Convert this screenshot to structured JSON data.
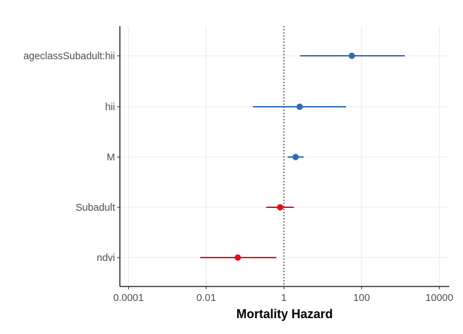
{
  "chart_data": {
    "type": "scatter",
    "subtype": "forest-plot",
    "title": "",
    "xlabel": "Mortality Hazard",
    "ylabel": "",
    "x_scale": "log10",
    "xlim": [
      6e-05,
      18000
    ],
    "x_ticks": [
      {
        "value": 0.0001,
        "label": "0.0001"
      },
      {
        "value": 0.01,
        "label": "0.01"
      },
      {
        "value": 1,
        "label": "1"
      },
      {
        "value": 100,
        "label": "100"
      },
      {
        "value": 10000,
        "label": "10000"
      }
    ],
    "reference_line": {
      "x": 1,
      "style": "dotted"
    },
    "grid": true,
    "legend": "none",
    "colors": {
      "increase": "#2F6DB0",
      "decrease": "#E0101C",
      "axis": "#000000",
      "grid": "#EBEBEB",
      "text": "#4D4D4D"
    },
    "categories": [
      "ageclassSubadult:hii",
      "hii",
      "M",
      "Subadult",
      "ndvi"
    ],
    "points": [
      {
        "label": "ageclassSubadult:hii",
        "estimate": 56,
        "lower": 2.6,
        "upper": 1300,
        "color": "#2F6DB0"
      },
      {
        "label": "hii",
        "estimate": 2.55,
        "lower": 0.16,
        "upper": 40,
        "color": "#2F6DB0"
      },
      {
        "label": "M",
        "estimate": 2.0,
        "lower": 1.25,
        "upper": 3.2,
        "color": "#2F6DB0"
      },
      {
        "label": "Subadult",
        "estimate": 0.8,
        "lower": 0.35,
        "upper": 1.8,
        "color": "#E0101C"
      },
      {
        "label": "ndvi",
        "estimate": 0.065,
        "lower": 0.007,
        "upper": 0.64,
        "color": "#E0101C"
      }
    ]
  }
}
